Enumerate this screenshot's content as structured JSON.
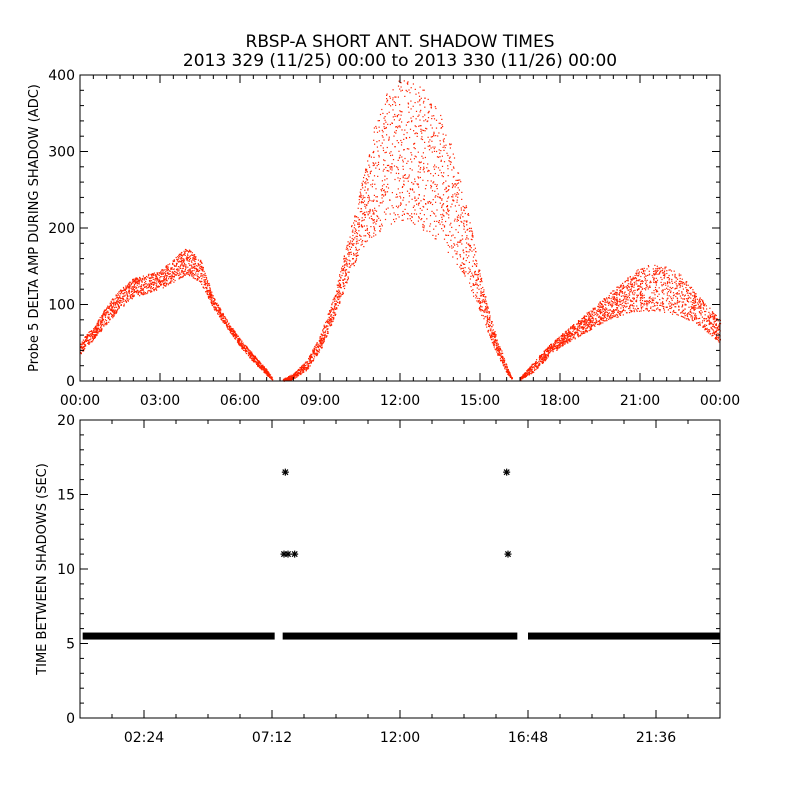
{
  "header": {
    "title": "RBSP-A SHORT ANT. SHADOW TIMES",
    "subtitle": "2013 329 (11/25) 00:00 to 2013 330 (11/26) 00:00"
  },
  "colors": {
    "top_points": "#ff2200",
    "bottom_points": "#000000",
    "axes": "#000000"
  },
  "chart_data": [
    {
      "type": "scatter",
      "ylabel": "Probe 5 DELTA AMP DURING SHADOW (ADC)",
      "xlim": [
        0,
        24
      ],
      "ylim": [
        0,
        400
      ],
      "xticks": [
        0,
        3,
        6,
        9,
        12,
        15,
        18,
        21,
        24
      ],
      "xtick_labels": [
        "00:00",
        "03:00",
        "06:00",
        "09:00",
        "12:00",
        "15:00",
        "18:00",
        "21:00",
        "00:00"
      ],
      "yticks": [
        0,
        100,
        200,
        300,
        400
      ],
      "ytick_labels": [
        "0",
        "100",
        "200",
        "300",
        "400"
      ],
      "bands": [
        {
          "x": [
            0.0,
            0.5,
            1.0,
            1.5,
            2.0,
            2.5,
            3.0,
            3.5,
            4.0,
            4.5,
            5.0,
            5.5,
            6.0,
            6.5,
            7.0,
            7.2
          ],
          "y_low": [
            35,
            55,
            75,
            95,
            110,
            115,
            120,
            130,
            140,
            130,
            95,
            70,
            45,
            25,
            8,
            2
          ],
          "y_high": [
            55,
            70,
            100,
            120,
            135,
            140,
            145,
            160,
            175,
            160,
            110,
            80,
            55,
            35,
            15,
            5
          ]
        },
        {
          "x": [
            7.6,
            8.0,
            8.5,
            9.0,
            9.5,
            10.0,
            10.5,
            11.0,
            11.5,
            12.0,
            12.5,
            13.0,
            13.5,
            14.0,
            14.5,
            15.0,
            15.5,
            16.0,
            16.2
          ],
          "y_low": [
            0,
            3,
            15,
            40,
            80,
            130,
            170,
            190,
            200,
            210,
            205,
            195,
            180,
            160,
            130,
            90,
            45,
            10,
            2
          ],
          "y_high": [
            3,
            10,
            28,
            60,
            110,
            180,
            250,
            330,
            380,
            395,
            390,
            380,
            350,
            300,
            230,
            140,
            70,
            20,
            4
          ]
        },
        {
          "x": [
            16.5,
            17.0,
            17.5,
            18.0,
            18.5,
            19.0,
            19.5,
            20.0,
            20.5,
            21.0,
            21.5,
            22.0,
            22.5,
            23.0,
            23.5,
            24.0
          ],
          "y_low": [
            2,
            12,
            30,
            45,
            55,
            65,
            75,
            82,
            88,
            92,
            92,
            90,
            85,
            78,
            65,
            50
          ],
          "y_high": [
            5,
            25,
            45,
            60,
            75,
            90,
            105,
            120,
            135,
            150,
            155,
            150,
            140,
            120,
            100,
            80
          ]
        }
      ]
    },
    {
      "type": "scatter",
      "ylabel": "TIME BETWEEN SHADOWS (SEC)",
      "xlim": [
        0,
        24
      ],
      "ylim": [
        0,
        20
      ],
      "xticks": [
        2.4,
        7.2,
        12.0,
        16.8,
        21.6
      ],
      "xtick_labels": [
        "02:24",
        "07:12",
        "12:00",
        "16:48",
        "21:36"
      ],
      "yticks": [
        0,
        5,
        10,
        15,
        20
      ],
      "ytick_labels": [
        "0",
        "5",
        "10",
        "15",
        "20"
      ],
      "main_value": 5.5,
      "main_segments": [
        [
          0.1,
          7.3
        ],
        [
          7.6,
          16.4
        ],
        [
          16.8,
          24.0
        ]
      ],
      "outliers": [
        {
          "x": 7.7,
          "y": 16.5
        },
        {
          "x": 7.65,
          "y": 11.0
        },
        {
          "x": 7.8,
          "y": 11.0
        },
        {
          "x": 8.05,
          "y": 11.0
        },
        {
          "x": 16.0,
          "y": 16.5
        },
        {
          "x": 16.05,
          "y": 11.0
        }
      ]
    }
  ]
}
